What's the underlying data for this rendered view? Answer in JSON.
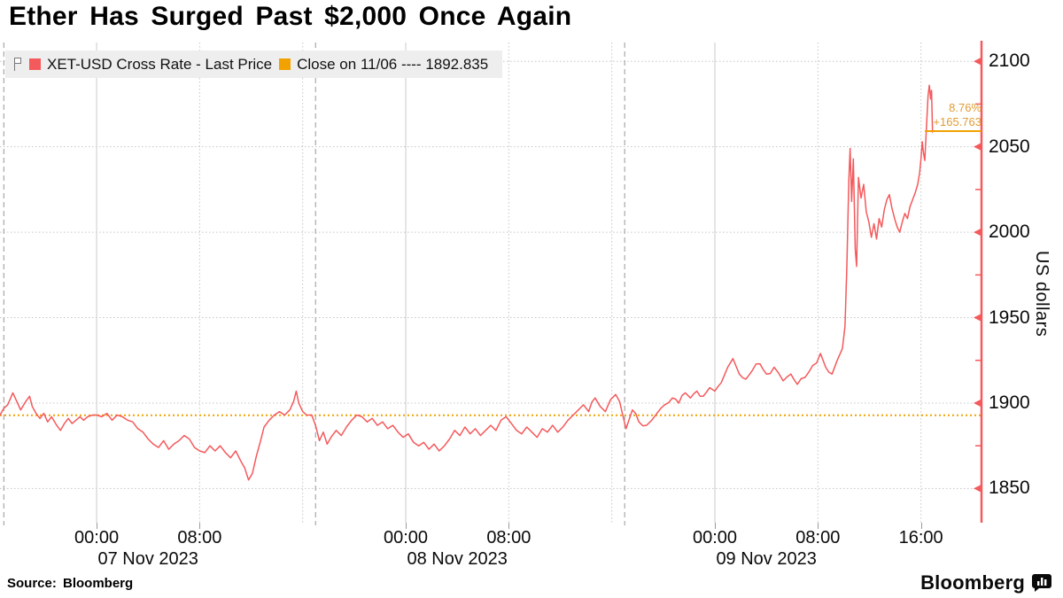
{
  "title": "Ether Has Surged Past $2,000 Once Again",
  "legend": {
    "series_label": "XET-USD Cross Rate - Last Price",
    "close_label": "Close on 11/06 ---- 1892.835"
  },
  "annotation": {
    "percent": "8.76%",
    "change": "+165.763"
  },
  "footer": {
    "source": "Source: Bloomberg",
    "brand": "Bloomberg"
  },
  "colors": {
    "price_line": "#f4595c",
    "axis": "#f4595c",
    "close_line": "#f0a202",
    "close_swatch": "#f2a200",
    "annotation_text": "#e09c33",
    "grid_dotted": "#c6c6c6",
    "grid_solid": "#cbcbcb",
    "separator": "#a8a8a8",
    "legend_bg": "#eeeeee"
  },
  "chart_data": {
    "type": "line",
    "title": "Ether Has Surged Past $2,000 Once Again",
    "ylabel": "US dollars",
    "x_unit": "hours since 2023-11-07 00:00",
    "x_range": [
      -7.5,
      68.7
    ],
    "ylim": [
      1830,
      2111
    ],
    "y_ticks": [
      1850,
      1900,
      1950,
      2000,
      2050,
      2100
    ],
    "y_minor_ticks": [
      1875,
      1925,
      1975,
      2025,
      2075
    ],
    "x_time_ticks": [
      {
        "t": 0,
        "label": "00:00"
      },
      {
        "t": 8,
        "label": "08:00"
      },
      {
        "t": 24,
        "label": "00:00"
      },
      {
        "t": 32,
        "label": "08:00"
      },
      {
        "t": 48,
        "label": "00:00"
      },
      {
        "t": 56,
        "label": "08:00"
      },
      {
        "t": 64,
        "label": "16:00"
      }
    ],
    "x_date_labels": [
      {
        "t": 4,
        "label": "07 Nov 2023"
      },
      {
        "t": 28,
        "label": "08 Nov 2023"
      },
      {
        "t": 52,
        "label": "09 Nov 2023"
      }
    ],
    "x_solid_gridlines": [
      0,
      24,
      48
    ],
    "x_dotted_gridlines": [
      8,
      16,
      32,
      40,
      56,
      64
    ],
    "day_separators": [
      -7.2,
      17,
      41
    ],
    "reference_line": {
      "label": "Close on 11/06",
      "value": 1892.835
    },
    "last_point": {
      "value": 2058.598,
      "pct_change": "8.76%",
      "abs_change": "+165.763"
    },
    "legend_position": "top-left",
    "grid": true,
    "series": [
      {
        "name": "XET-USD Cross Rate - Last Price",
        "color": "#f4595c",
        "points": [
          [
            -7.5,
            1893
          ],
          [
            -7.2,
            1897
          ],
          [
            -6.9,
            1899
          ],
          [
            -6.5,
            1906
          ],
          [
            -6.2,
            1901
          ],
          [
            -5.9,
            1896
          ],
          [
            -5.5,
            1901
          ],
          [
            -5.2,
            1904
          ],
          [
            -5.0,
            1898
          ],
          [
            -4.7,
            1894
          ],
          [
            -4.4,
            1891
          ],
          [
            -4.1,
            1894
          ],
          [
            -3.8,
            1889
          ],
          [
            -3.5,
            1892
          ],
          [
            -3.1,
            1887
          ],
          [
            -2.8,
            1884
          ],
          [
            -2.5,
            1888
          ],
          [
            -2.2,
            1891
          ],
          [
            -1.9,
            1888
          ],
          [
            -1.6,
            1890
          ],
          [
            -1.3,
            1892
          ],
          [
            -1.0,
            1890
          ],
          [
            -0.7,
            1892
          ],
          [
            -0.3,
            1893
          ],
          [
            0.0,
            1893
          ],
          [
            0.4,
            1892
          ],
          [
            0.8,
            1894
          ],
          [
            1.2,
            1890
          ],
          [
            1.6,
            1893
          ],
          [
            2.0,
            1892
          ],
          [
            2.4,
            1890
          ],
          [
            2.8,
            1889
          ],
          [
            3.2,
            1885
          ],
          [
            3.6,
            1883
          ],
          [
            4.0,
            1879
          ],
          [
            4.4,
            1876
          ],
          [
            4.8,
            1874
          ],
          [
            5.2,
            1878
          ],
          [
            5.6,
            1873
          ],
          [
            6.0,
            1876
          ],
          [
            6.4,
            1878
          ],
          [
            6.8,
            1881
          ],
          [
            7.2,
            1879
          ],
          [
            7.6,
            1874
          ],
          [
            8.0,
            1872
          ],
          [
            8.4,
            1871
          ],
          [
            8.8,
            1875
          ],
          [
            9.2,
            1872
          ],
          [
            9.6,
            1875
          ],
          [
            10.0,
            1871
          ],
          [
            10.4,
            1868
          ],
          [
            10.8,
            1872
          ],
          [
            11.2,
            1866
          ],
          [
            11.5,
            1862
          ],
          [
            11.8,
            1855
          ],
          [
            12.1,
            1859
          ],
          [
            12.4,
            1869
          ],
          [
            12.7,
            1877
          ],
          [
            13.0,
            1886
          ],
          [
            13.4,
            1890
          ],
          [
            13.8,
            1893
          ],
          [
            14.2,
            1895
          ],
          [
            14.6,
            1893
          ],
          [
            15.0,
            1896
          ],
          [
            15.3,
            1901
          ],
          [
            15.5,
            1907
          ],
          [
            15.7,
            1900
          ],
          [
            16.0,
            1895
          ],
          [
            16.3,
            1893
          ],
          [
            16.7,
            1893
          ],
          [
            17.0,
            1887
          ],
          [
            17.3,
            1878
          ],
          [
            17.6,
            1883
          ],
          [
            17.9,
            1876
          ],
          [
            18.2,
            1880
          ],
          [
            18.6,
            1884
          ],
          [
            19.0,
            1881
          ],
          [
            19.4,
            1886
          ],
          [
            19.8,
            1890
          ],
          [
            20.2,
            1893
          ],
          [
            20.6,
            1892
          ],
          [
            21.0,
            1889
          ],
          [
            21.4,
            1891
          ],
          [
            21.8,
            1887
          ],
          [
            22.2,
            1889
          ],
          [
            22.6,
            1885
          ],
          [
            23.0,
            1887
          ],
          [
            23.4,
            1883
          ],
          [
            23.8,
            1880
          ],
          [
            24.2,
            1882
          ],
          [
            24.6,
            1877
          ],
          [
            25.0,
            1875
          ],
          [
            25.4,
            1877
          ],
          [
            25.8,
            1873
          ],
          [
            26.2,
            1876
          ],
          [
            26.6,
            1872
          ],
          [
            27.0,
            1875
          ],
          [
            27.4,
            1879
          ],
          [
            27.8,
            1884
          ],
          [
            28.2,
            1881
          ],
          [
            28.6,
            1886
          ],
          [
            29.0,
            1882
          ],
          [
            29.4,
            1885
          ],
          [
            29.8,
            1881
          ],
          [
            30.2,
            1884
          ],
          [
            30.6,
            1887
          ],
          [
            31.0,
            1884
          ],
          [
            31.4,
            1890
          ],
          [
            31.8,
            1892
          ],
          [
            32.2,
            1888
          ],
          [
            32.6,
            1884
          ],
          [
            33.0,
            1882
          ],
          [
            33.4,
            1886
          ],
          [
            33.8,
            1883
          ],
          [
            34.2,
            1880
          ],
          [
            34.6,
            1885
          ],
          [
            35.0,
            1883
          ],
          [
            35.4,
            1887
          ],
          [
            35.8,
            1883
          ],
          [
            36.2,
            1886
          ],
          [
            36.6,
            1890
          ],
          [
            37.0,
            1893
          ],
          [
            37.4,
            1896
          ],
          [
            37.8,
            1899
          ],
          [
            38.2,
            1895
          ],
          [
            38.7,
            1903
          ],
          [
            39.1,
            1898
          ],
          [
            39.5,
            1895
          ],
          [
            39.9,
            1902
          ],
          [
            40.3,
            1905
          ],
          [
            40.6,
            1901
          ],
          [
            41.1,
            1885
          ],
          [
            41.6,
            1896
          ],
          [
            42.1,
            1889
          ],
          [
            42.7,
            1887
          ],
          [
            43.1,
            1890
          ],
          [
            43.5,
            1894
          ],
          [
            44.1,
            1899
          ],
          [
            44.7,
            1903
          ],
          [
            45.2,
            1900
          ],
          [
            45.7,
            1906
          ],
          [
            46.1,
            1903
          ],
          [
            46.6,
            1907
          ],
          [
            47.1,
            1904
          ],
          [
            47.6,
            1909
          ],
          [
            48.0,
            1907
          ],
          [
            48.5,
            1912
          ],
          [
            49.0,
            1921
          ],
          [
            49.4,
            1926
          ],
          [
            49.9,
            1917
          ],
          [
            50.4,
            1914
          ],
          [
            50.9,
            1919
          ],
          [
            51.5,
            1923
          ],
          [
            52.0,
            1917
          ],
          [
            52.6,
            1921
          ],
          [
            53.3,
            1913
          ],
          [
            53.9,
            1917
          ],
          [
            54.4,
            1911
          ],
          [
            55.0,
            1915
          ],
          [
            55.6,
            1922
          ],
          [
            56.2,
            1929
          ],
          [
            56.6,
            1921
          ],
          [
            57.1,
            1917
          ],
          [
            57.5,
            1925
          ],
          [
            57.9,
            1932
          ],
          [
            58.1,
            1945
          ],
          [
            58.25,
            1980
          ],
          [
            58.4,
            2030
          ],
          [
            58.5,
            2049
          ],
          [
            58.62,
            2018
          ],
          [
            58.75,
            2043
          ],
          [
            58.9,
            1990
          ],
          [
            59.0,
            1980
          ],
          [
            59.15,
            2032
          ],
          [
            59.35,
            2020
          ],
          [
            59.55,
            2028
          ],
          [
            59.75,
            2012
          ],
          [
            59.95,
            2006
          ],
          [
            60.15,
            1997
          ],
          [
            60.35,
            2005
          ],
          [
            60.55,
            1996
          ],
          [
            60.75,
            2008
          ],
          [
            60.95,
            2003
          ],
          [
            61.15,
            2013
          ],
          [
            61.35,
            2019
          ],
          [
            61.55,
            2022
          ],
          [
            61.75,
            2014
          ],
          [
            61.95,
            2008
          ],
          [
            62.15,
            2003
          ],
          [
            62.35,
            2000
          ],
          [
            62.55,
            2006
          ],
          [
            62.75,
            2011
          ],
          [
            62.95,
            2008
          ],
          [
            63.15,
            2015
          ],
          [
            63.35,
            2019
          ],
          [
            63.55,
            2023
          ],
          [
            63.75,
            2028
          ],
          [
            63.9,
            2035
          ],
          [
            64.0,
            2043
          ],
          [
            64.1,
            2053
          ],
          [
            64.2,
            2046
          ],
          [
            64.3,
            2042
          ],
          [
            64.45,
            2065
          ],
          [
            64.55,
            2080
          ],
          [
            64.65,
            2086
          ],
          [
            64.75,
            2078
          ],
          [
            64.82,
            2083
          ],
          [
            64.9,
            2058.6
          ]
        ]
      }
    ]
  }
}
